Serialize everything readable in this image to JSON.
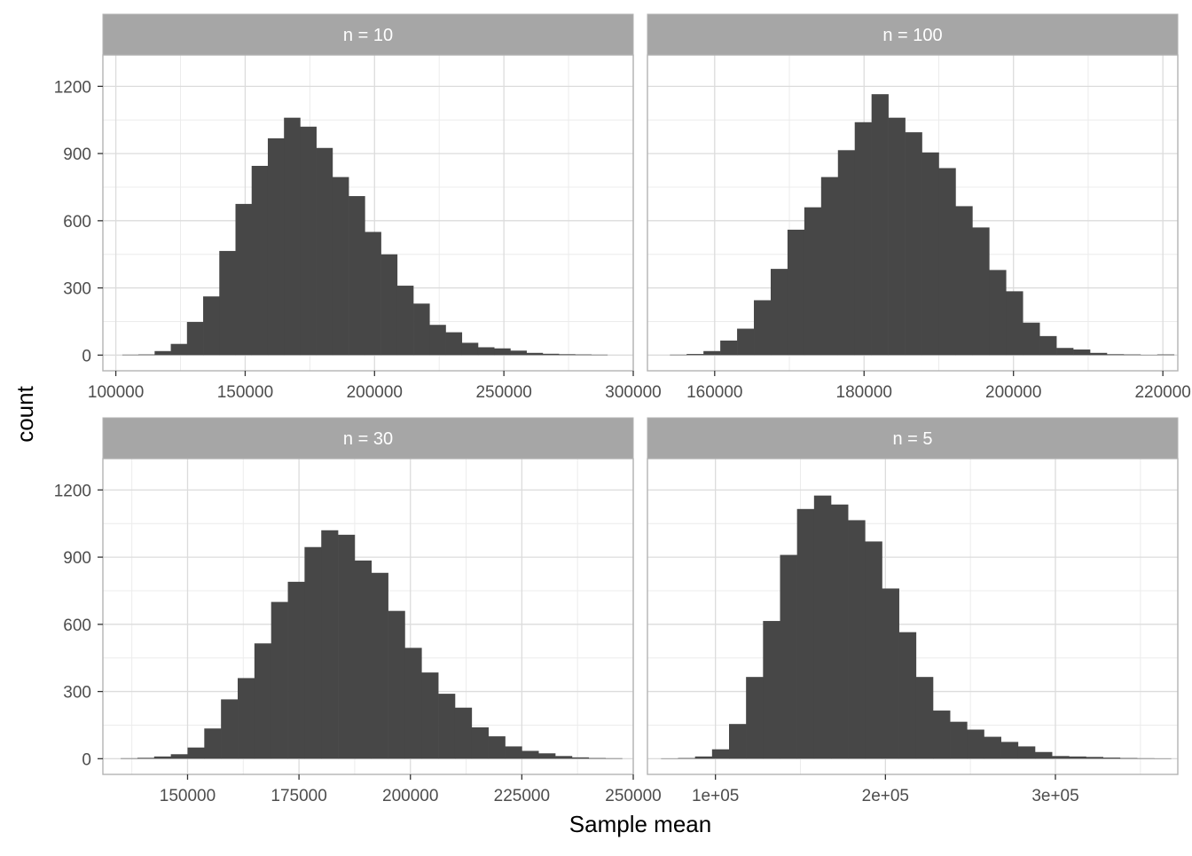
{
  "chart_data": {
    "type": "bar",
    "facet_layout": "2x2",
    "xlabel": "Sample mean",
    "ylabel": "count",
    "y_ticks": [
      "0",
      "300",
      "600",
      "900",
      "1200"
    ],
    "ylim": [
      -70,
      1340
    ],
    "grid": true,
    "theme": "light",
    "colors": {
      "bar": "#474747",
      "strip_bg": "#a6a6a6",
      "strip_text": "#ffffff",
      "grid_major": "#dcdcdc",
      "grid_minor": "#ececec",
      "panel_border": "#b3b3b3",
      "axis_text": "#4d4d4d"
    },
    "panels": [
      {
        "strip": "n = 10",
        "xlim": [
          95000,
          300000
        ],
        "x_ticks": [
          100000,
          150000,
          200000,
          250000,
          300000
        ],
        "x_tick_labels": [
          "100000",
          "150000",
          "200000",
          "250000",
          "300000"
        ],
        "bin_start": 102500,
        "bin_width": 6250,
        "values": [
          2,
          3,
          18,
          50,
          148,
          262,
          465,
          675,
          845,
          968,
          1060,
          1020,
          925,
          795,
          710,
          550,
          450,
          310,
          230,
          135,
          102,
          55,
          35,
          30,
          20,
          10,
          6,
          4,
          3,
          2
        ]
      },
      {
        "strip": "n = 100",
        "xlim": [
          151000,
          222000
        ],
        "x_ticks": [
          160000,
          180000,
          200000,
          220000
        ],
        "x_tick_labels": [
          "160000",
          "180000",
          "200000",
          "220000"
        ],
        "bin_start": 154000,
        "bin_width": 2250,
        "values": [
          2,
          5,
          18,
          65,
          118,
          245,
          385,
          560,
          660,
          795,
          915,
          1040,
          1165,
          1060,
          995,
          905,
          835,
          665,
          570,
          380,
          285,
          145,
          85,
          32,
          25,
          10,
          4,
          3,
          1,
          3
        ]
      },
      {
        "strip": "n = 30",
        "xlim": [
          131000,
          250000
        ],
        "x_ticks": [
          150000,
          175000,
          200000,
          225000,
          250000
        ],
        "x_tick_labels": [
          "150000",
          "175000",
          "200000",
          "225000",
          "250000"
        ],
        "bin_start": 135000,
        "bin_width": 3750,
        "values": [
          2,
          4,
          10,
          20,
          50,
          135,
          265,
          360,
          515,
          700,
          790,
          945,
          1020,
          1000,
          885,
          830,
          660,
          495,
          385,
          290,
          228,
          140,
          100,
          55,
          35,
          24,
          12,
          6,
          3,
          2
        ]
      },
      {
        "strip": "n = 5",
        "xlim": [
          60000,
          372000
        ],
        "x_ticks": [
          100000,
          200000,
          300000
        ],
        "x_tick_labels": [
          "1e+05",
          "2e+05",
          "3e+05"
        ],
        "bin_start": 68000,
        "bin_width": 10000,
        "values": [
          1,
          3,
          10,
          42,
          155,
          365,
          615,
          910,
          1115,
          1175,
          1135,
          1065,
          970,
          760,
          565,
          365,
          215,
          165,
          130,
          98,
          75,
          55,
          30,
          12,
          10,
          8,
          5,
          3,
          2,
          1
        ]
      }
    ]
  }
}
